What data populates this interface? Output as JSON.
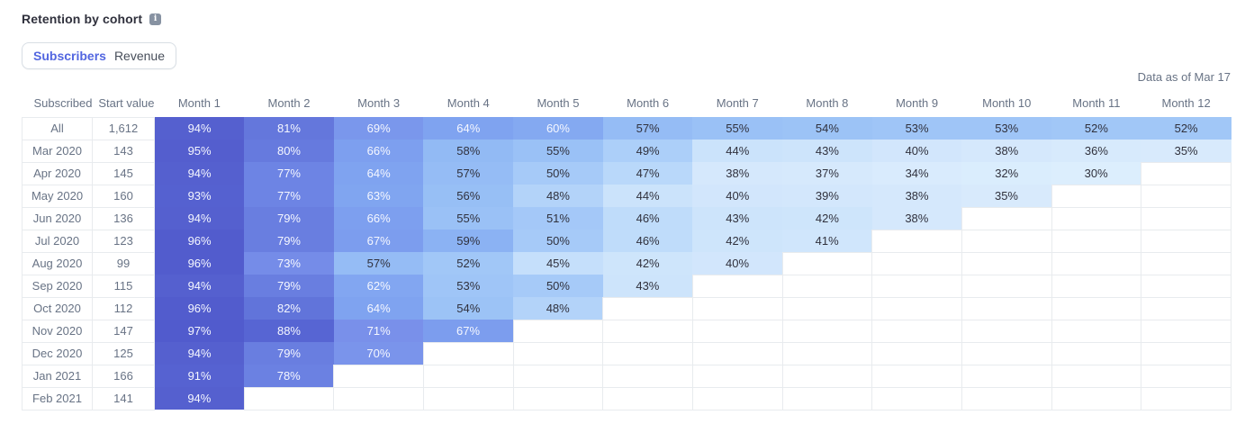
{
  "header": {
    "title": "Retention by cohort"
  },
  "icons": {
    "info": "i"
  },
  "toggle": {
    "options": [
      {
        "label": "Subscribers",
        "active": true
      },
      {
        "label": "Revenue",
        "active": false
      }
    ]
  },
  "meta": {
    "data_as_of": "Data as of Mar 17"
  },
  "chart_data": {
    "type": "heatmap",
    "title": "Retention by cohort",
    "view": "Subscribers",
    "value_format": "percent",
    "row_header_labels": [
      "Subscribed",
      "Start value"
    ],
    "month_columns": [
      "Month 1",
      "Month 2",
      "Month 3",
      "Month 4",
      "Month 5",
      "Month 6",
      "Month 7",
      "Month 8",
      "Month 9",
      "Month 10",
      "Month 11",
      "Month 12"
    ],
    "rows": [
      {
        "cohort": "All",
        "start_value": "1,612",
        "values": [
          94,
          81,
          69,
          64,
          60,
          57,
          55,
          54,
          53,
          53,
          52,
          52
        ]
      },
      {
        "cohort": "Mar 2020",
        "start_value": "143",
        "values": [
          95,
          80,
          66,
          58,
          55,
          49,
          44,
          43,
          40,
          38,
          36,
          35
        ]
      },
      {
        "cohort": "Apr 2020",
        "start_value": "145",
        "values": [
          94,
          77,
          64,
          57,
          50,
          47,
          38,
          37,
          34,
          32,
          30
        ]
      },
      {
        "cohort": "May 2020",
        "start_value": "160",
        "values": [
          93,
          77,
          63,
          56,
          48,
          44,
          40,
          39,
          38,
          35
        ]
      },
      {
        "cohort": "Jun 2020",
        "start_value": "136",
        "values": [
          94,
          79,
          66,
          55,
          51,
          46,
          43,
          42,
          38
        ]
      },
      {
        "cohort": "Jul 2020",
        "start_value": "123",
        "values": [
          96,
          79,
          67,
          59,
          50,
          46,
          42,
          41
        ]
      },
      {
        "cohort": "Aug 2020",
        "start_value": "99",
        "values": [
          96,
          73,
          57,
          52,
          45,
          42,
          40
        ]
      },
      {
        "cohort": "Sep 2020",
        "start_value": "115",
        "values": [
          94,
          79,
          62,
          53,
          50,
          43
        ]
      },
      {
        "cohort": "Oct 2020",
        "start_value": "112",
        "values": [
          96,
          82,
          64,
          54,
          48
        ]
      },
      {
        "cohort": "Nov 2020",
        "start_value": "147",
        "values": [
          97,
          88,
          71,
          67
        ]
      },
      {
        "cohort": "Dec 2020",
        "start_value": "125",
        "values": [
          94,
          79,
          70
        ]
      },
      {
        "cohort": "Jan 2021",
        "start_value": "166",
        "values": [
          91,
          78
        ]
      },
      {
        "cohort": "Feb 2021",
        "start_value": "141",
        "values": [
          94
        ]
      }
    ],
    "color_scale": {
      "stops": [
        {
          "value": 30,
          "color": "#DCEEFD"
        },
        {
          "value": 38,
          "color": "#D5E8FC"
        },
        {
          "value": 44,
          "color": "#CBE3FB"
        },
        {
          "value": 47,
          "color": "#B9D8FA"
        },
        {
          "value": 50,
          "color": "#A6CAF8"
        },
        {
          "value": 54,
          "color": "#9CC3F6"
        },
        {
          "value": 58,
          "color": "#92BAF4"
        },
        {
          "value": 60,
          "color": "#84A9F1"
        },
        {
          "value": 64,
          "color": "#7FA3F0"
        },
        {
          "value": 68,
          "color": "#7B9BED"
        },
        {
          "value": 71,
          "color": "#7990EA"
        },
        {
          "value": 77,
          "color": "#6D84E4"
        },
        {
          "value": 81,
          "color": "#6477DC"
        },
        {
          "value": 86,
          "color": "#5766D4"
        },
        {
          "value": 94,
          "color": "#5560CF"
        },
        {
          "value": 100,
          "color": "#4C55CA"
        }
      ],
      "light_text_min": 60,
      "dark_text_color": "#30313D",
      "light_text_color": "#F5F7FF"
    }
  }
}
